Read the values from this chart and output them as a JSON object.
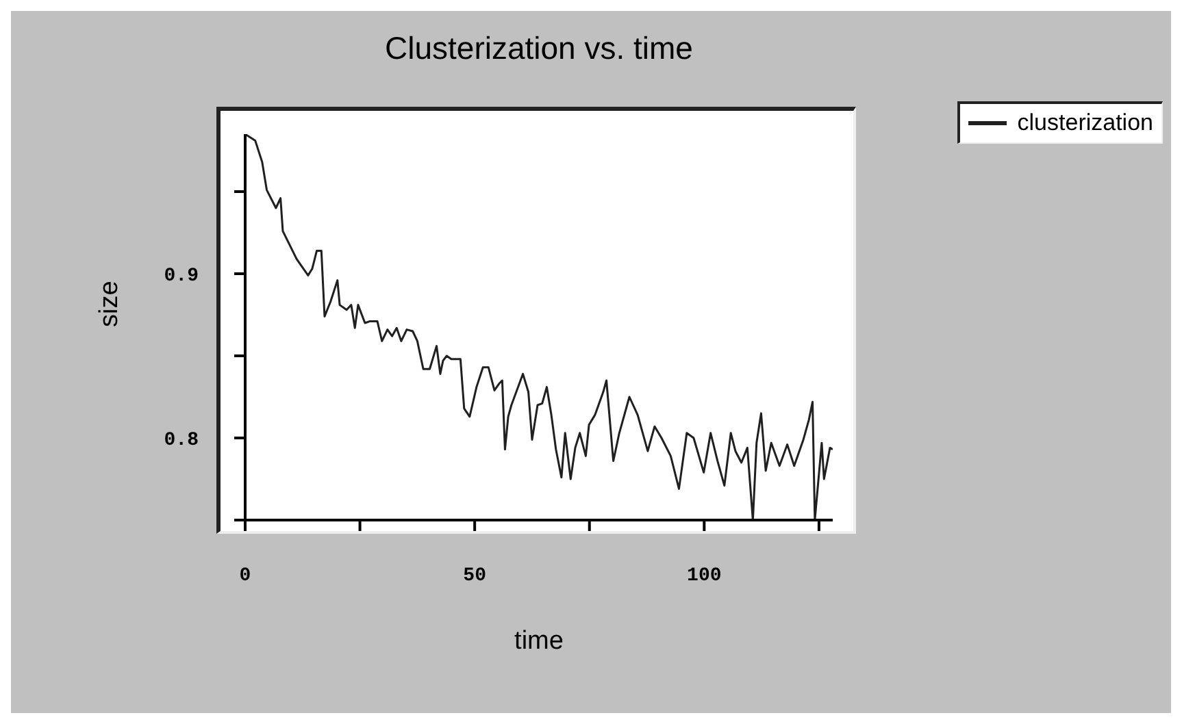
{
  "chart_data": {
    "type": "line",
    "title": "Clusterization vs. time",
    "xlabel": "time",
    "ylabel": "size",
    "x": [
      0,
      2.2,
      3.7,
      4.7,
      6.7,
      7.7,
      8.2,
      11.2,
      13.7,
      14.6,
      15.6,
      16.6,
      17.3,
      18.6,
      20.1,
      20.6,
      22.1,
      23.1,
      23.9,
      24.6,
      26.1,
      27.1,
      28.8,
      29.8,
      31,
      32,
      33,
      34,
      35.2,
      36.5,
      37.5,
      38.8,
      40.2,
      41.7,
      42.5,
      43.1,
      43.9,
      44.9,
      46.9,
      47.7,
      48.9,
      50.4,
      51.8,
      53,
      54.3,
      55.3,
      56,
      56.6,
      57.3,
      58,
      60.5,
      61.7,
      62.5,
      63.7,
      64.7,
      65.7,
      66.7,
      67.7,
      68.9,
      69.7,
      70.9,
      71.9,
      72.9,
      74.2,
      74.9,
      76.2,
      78,
      78.7,
      80.2,
      81.5,
      83.7,
      85.5,
      87.7,
      89.2,
      90.7,
      92.7,
      94.5,
      96.2,
      97.7,
      99.9,
      101.4,
      102.9,
      104.4,
      105.8,
      106.8,
      108.1,
      109.4,
      110.6,
      111.4,
      112.4,
      113.4,
      114.6,
      116.4,
      118.1,
      119.6,
      121.6,
      122.8,
      123.6,
      124.1,
      125.6,
      126.1,
      127.4,
      128
    ],
    "series": [
      {
        "name": "clusterization",
        "color": "#202020",
        "values": [
          0.985,
          0.981,
          0.968,
          0.951,
          0.94,
          0.946,
          0.926,
          0.909,
          0.899,
          0.903,
          0.914,
          0.914,
          0.874,
          0.883,
          0.896,
          0.881,
          0.878,
          0.881,
          0.867,
          0.881,
          0.87,
          0.871,
          0.871,
          0.859,
          0.866,
          0.862,
          0.867,
          0.859,
          0.866,
          0.865,
          0.859,
          0.842,
          0.842,
          0.856,
          0.839,
          0.847,
          0.85,
          0.848,
          0.848,
          0.818,
          0.813,
          0.831,
          0.843,
          0.843,
          0.829,
          0.833,
          0.835,
          0.793,
          0.813,
          0.82,
          0.839,
          0.828,
          0.799,
          0.82,
          0.821,
          0.831,
          0.814,
          0.793,
          0.776,
          0.803,
          0.775,
          0.794,
          0.803,
          0.789,
          0.808,
          0.814,
          0.828,
          0.835,
          0.786,
          0.803,
          0.825,
          0.814,
          0.792,
          0.807,
          0.8,
          0.789,
          0.769,
          0.803,
          0.8,
          0.779,
          0.803,
          0.786,
          0.771,
          0.803,
          0.792,
          0.785,
          0.794,
          0.75,
          0.797,
          0.815,
          0.78,
          0.797,
          0.783,
          0.796,
          0.783,
          0.799,
          0.811,
          0.822,
          0.75,
          0.797,
          0.775,
          0.794,
          0.793
        ]
      }
    ],
    "xlim": [
      0,
      128
    ],
    "xticks": [
      0,
      {
        "value": 25,
        "label": null
      },
      50,
      {
        "value": 75,
        "label": null
      },
      100,
      {
        "value": 125,
        "label": null
      }
    ],
    "ylim": [
      0.75,
      0.985
    ],
    "yticks": [
      {
        "value": 0.75,
        "label": null
      },
      0.8,
      {
        "value": 0.85,
        "label": null
      },
      0.9,
      {
        "value": 0.95,
        "label": null
      }
    ],
    "grid": false,
    "legend": "top right",
    "marker": "none",
    "line_style": "solid"
  }
}
